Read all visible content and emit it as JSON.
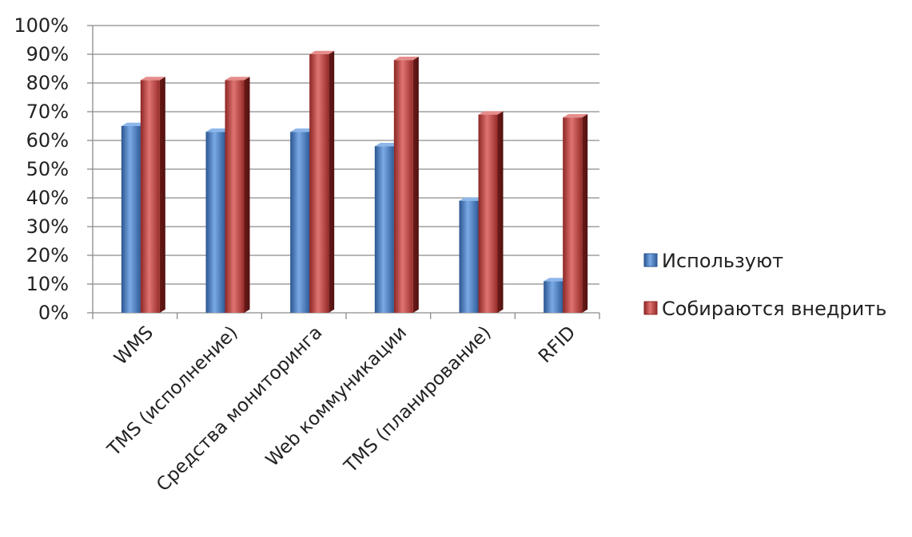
{
  "chart_data": {
    "type": "bar",
    "categories": [
      "WMS",
      "TMS (исполнение)",
      "Средства мониторинга",
      "Web коммуникации",
      "TMS (планирование)",
      "RFID"
    ],
    "series": [
      {
        "name": "Используют",
        "values": [
          65,
          63,
          63,
          58,
          39,
          11
        ],
        "color": "#4a7ebf"
      },
      {
        "name": "Собираются внедрить",
        "values": [
          81,
          81,
          90,
          88,
          69,
          68
        ],
        "color": "#c0504d"
      }
    ],
    "y_ticks": [
      "0%",
      "10%",
      "20%",
      "30%",
      "40%",
      "50%",
      "60%",
      "70%",
      "80%",
      "90%",
      "100%"
    ],
    "ylim": [
      0,
      100
    ],
    "grid": true,
    "legend_position": "right",
    "title": "",
    "xlabel": "",
    "ylabel": ""
  }
}
